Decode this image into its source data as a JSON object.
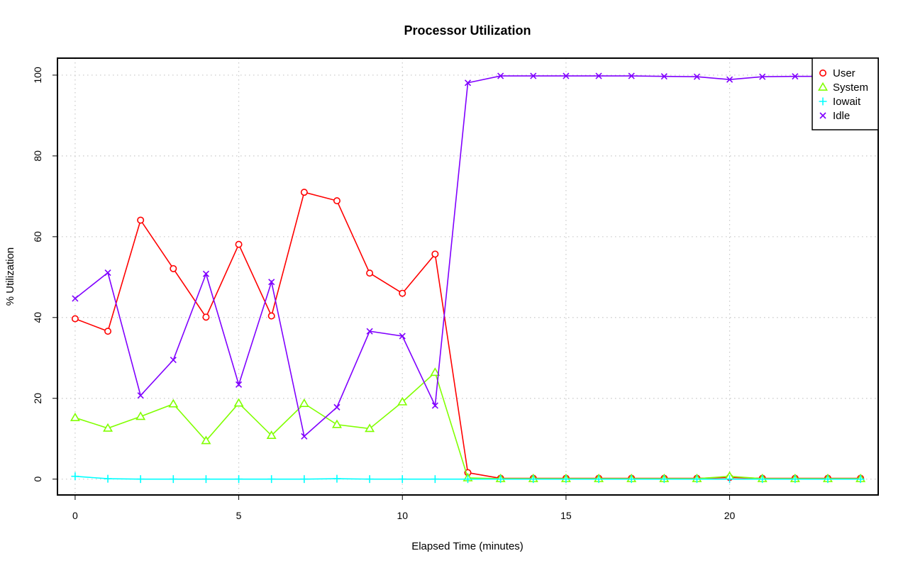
{
  "chart_data": {
    "type": "line",
    "title": "Processor Utilization",
    "xlabel": "Elapsed Time (minutes)",
    "ylabel": "% Utilization",
    "xlim": [
      0,
      24
    ],
    "ylim": [
      0,
      100
    ],
    "x_ticks": [
      0,
      5,
      10,
      15,
      20
    ],
    "y_ticks": [
      0,
      20,
      40,
      60,
      80,
      100
    ],
    "grid": true,
    "legend_position": "top-right",
    "x": [
      0,
      1,
      2,
      3,
      4,
      5,
      6,
      7,
      8,
      9,
      10,
      11,
      12,
      13,
      14,
      15,
      16,
      17,
      18,
      19,
      20,
      21,
      22,
      23,
      24
    ],
    "series": [
      {
        "name": "User",
        "color": "#ff0000",
        "marker": "circle",
        "values": [
          39.7,
          36.6,
          64.1,
          52.1,
          40.1,
          58.1,
          40.4,
          71.0,
          68.9,
          51.0,
          46.0,
          55.7,
          1.6,
          0.2,
          0.2,
          0.2,
          0.2,
          0.2,
          0.2,
          0.2,
          0.4,
          0.2,
          0.2,
          0.2,
          0.2
        ]
      },
      {
        "name": "System",
        "color": "#80ff00",
        "marker": "triangle",
        "values": [
          15.2,
          12.6,
          15.5,
          18.6,
          9.5,
          18.8,
          10.8,
          18.7,
          13.5,
          12.5,
          19.1,
          26.4,
          0.3,
          0.1,
          0.1,
          0.1,
          0.1,
          0.1,
          0.1,
          0.1,
          0.7,
          0.1,
          0.1,
          0.1,
          0.1
        ]
      },
      {
        "name": "Iowait",
        "color": "#00ffff",
        "marker": "plus",
        "values": [
          0.7,
          0.1,
          0.0,
          0.0,
          0.0,
          0.0,
          0.0,
          0.0,
          0.1,
          0.0,
          0.0,
          0.0,
          0.0,
          0.0,
          0.0,
          0.0,
          0.0,
          0.0,
          0.0,
          0.0,
          0.0,
          0.0,
          0.0,
          0.0,
          0.0
        ]
      },
      {
        "name": "Idle",
        "color": "#8000ff",
        "marker": "x",
        "values": [
          44.7,
          51.1,
          20.7,
          29.5,
          50.8,
          23.4,
          48.8,
          10.6,
          17.8,
          36.6,
          35.4,
          18.2,
          98.1,
          99.8,
          99.8,
          99.8,
          99.8,
          99.8,
          99.7,
          99.6,
          98.9,
          99.6,
          99.7,
          99.7,
          99.7
        ]
      }
    ]
  }
}
